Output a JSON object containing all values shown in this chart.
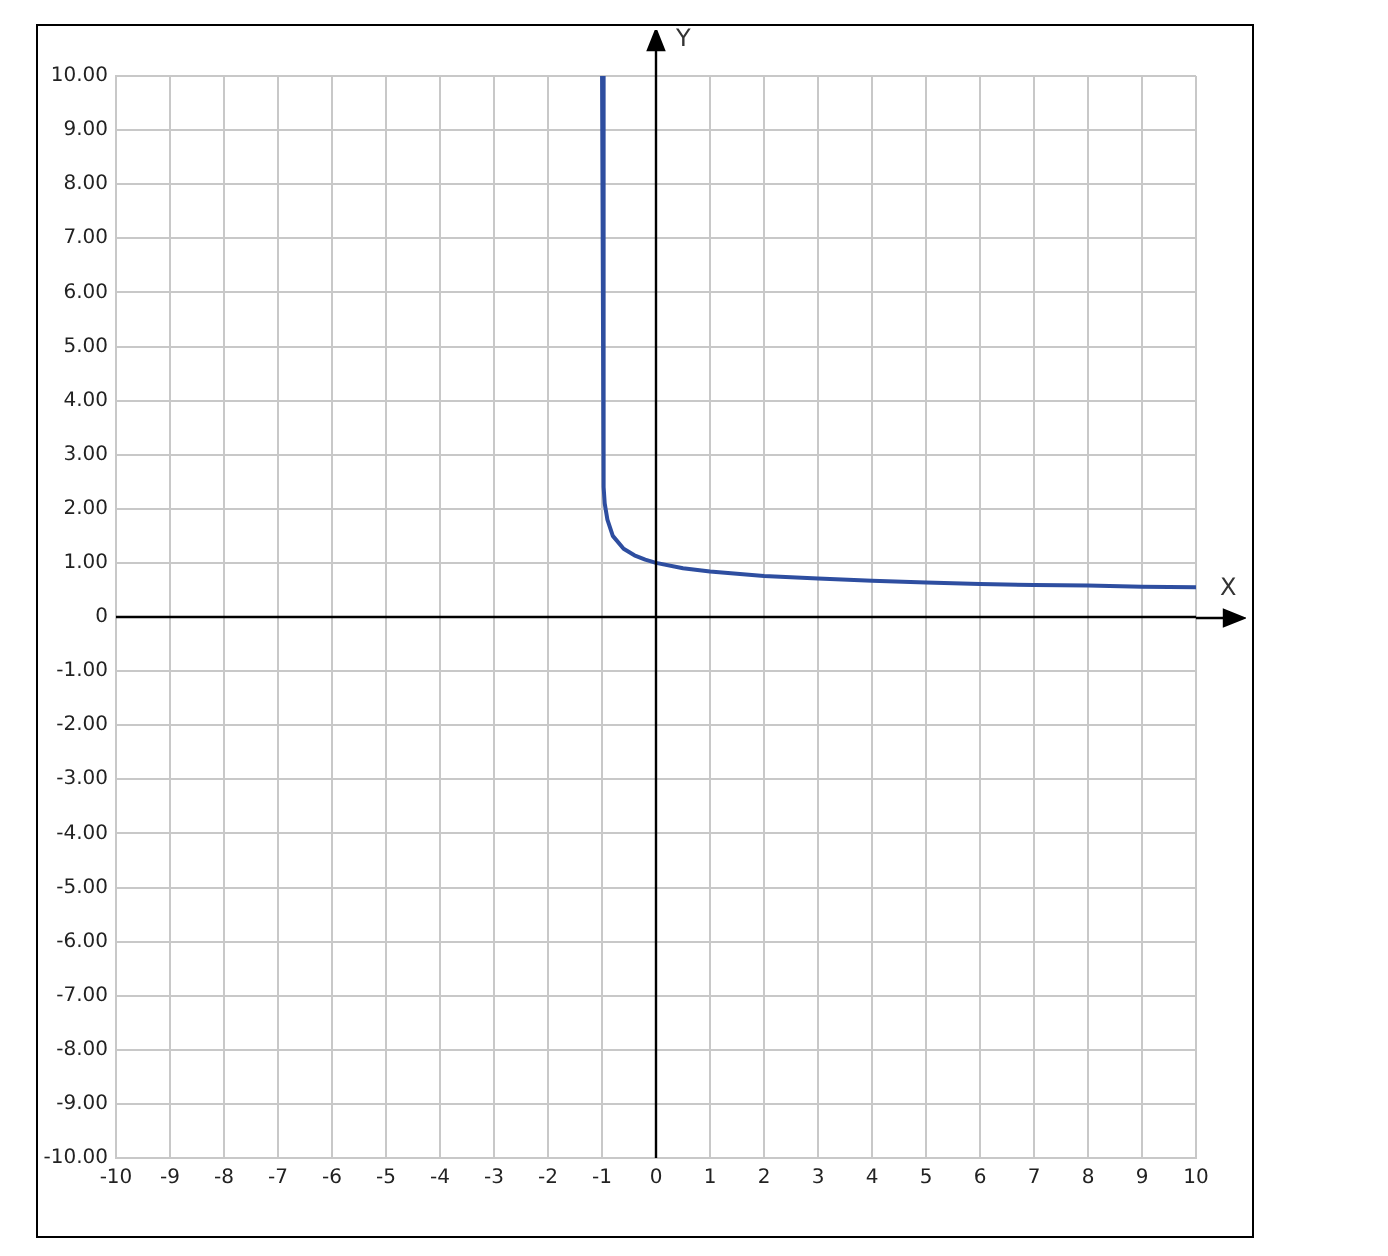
{
  "chart_data": {
    "type": "line",
    "xlabel": "X",
    "ylabel": "Y",
    "x": [
      -0.999,
      -0.97,
      -0.95,
      -0.9,
      -0.8,
      -0.6,
      -0.4,
      -0.2,
      0,
      0.5,
      1,
      2,
      3,
      4,
      5,
      6,
      7,
      8,
      9,
      10
    ],
    "series": [
      {
        "color": "#2e4ea0",
        "values": [
          10,
          2.4,
          2.1,
          1.8,
          1.5,
          1.26,
          1.14,
          1.06,
          1,
          0.9,
          0.84,
          0.76,
          0.71,
          0.67,
          0.64,
          0.61,
          0.59,
          0.58,
          0.56,
          0.55
        ]
      }
    ],
    "xlim": [
      -10,
      10
    ],
    "ylim": [
      -10,
      10
    ],
    "xticks": [
      -10,
      -9,
      -8,
      -7,
      -6,
      -5,
      -4,
      -3,
      -2,
      -1,
      0,
      1,
      2,
      3,
      4,
      5,
      6,
      7,
      8,
      9,
      10
    ],
    "yticks": [
      {
        "value": -10,
        "label": "-10.00"
      },
      {
        "value": -9,
        "label": "-9.00"
      },
      {
        "value": -8,
        "label": "-8.00"
      },
      {
        "value": -7,
        "label": "-7.00"
      },
      {
        "value": -6,
        "label": "-6.00"
      },
      {
        "value": -5,
        "label": "-5.00"
      },
      {
        "value": -4,
        "label": "-4.00"
      },
      {
        "value": -3,
        "label": "-3.00"
      },
      {
        "value": -2,
        "label": "-2.00"
      },
      {
        "value": -1,
        "label": "-1.00"
      },
      {
        "value": 0,
        "label": "0"
      },
      {
        "value": 1,
        "label": "1.00"
      },
      {
        "value": 2,
        "label": "2.00"
      },
      {
        "value": 3,
        "label": "3.00"
      },
      {
        "value": 4,
        "label": "4.00"
      },
      {
        "value": 5,
        "label": "5.00"
      },
      {
        "value": 6,
        "label": "6.00"
      },
      {
        "value": 7,
        "label": "7.00"
      },
      {
        "value": 8,
        "label": "8.00"
      },
      {
        "value": 9,
        "label": "9.00"
      },
      {
        "value": 10,
        "label": "10.00"
      }
    ],
    "grid": true,
    "legend": false,
    "marker": "none",
    "line_style": "solid"
  }
}
